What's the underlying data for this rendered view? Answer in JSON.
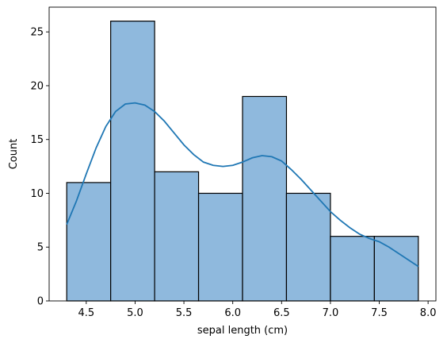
{
  "chart_data": {
    "type": "bar",
    "subtype": "histogram-with-kde",
    "xlabel": "sepal length (cm)",
    "ylabel": "Count",
    "xlim": [
      4.12,
      8.08
    ],
    "ylim": [
      0,
      27.3
    ],
    "xticks": [
      4.5,
      5.0,
      5.5,
      6.0,
      6.5,
      7.0,
      7.5,
      8.0
    ],
    "xtick_labels": [
      "4.5",
      "5.0",
      "5.5",
      "6.0",
      "6.5",
      "7.0",
      "7.5",
      "8.0"
    ],
    "yticks": [
      0,
      5,
      10,
      15,
      20,
      25
    ],
    "ytick_labels": [
      "0",
      "5",
      "10",
      "15",
      "20",
      "25"
    ],
    "bins": [
      {
        "x0": 4.3,
        "x1": 4.75,
        "count": 11
      },
      {
        "x0": 4.75,
        "x1": 5.2,
        "count": 26
      },
      {
        "x0": 5.2,
        "x1": 5.65,
        "count": 12
      },
      {
        "x0": 5.65,
        "x1": 6.1,
        "count": 10
      },
      {
        "x0": 6.1,
        "x1": 6.55,
        "count": 19
      },
      {
        "x0": 6.55,
        "x1": 7.0,
        "count": 10
      },
      {
        "x0": 7.0,
        "x1": 7.45,
        "count": 6
      },
      {
        "x0": 7.45,
        "x1": 7.9,
        "count": 6
      }
    ],
    "kde": {
      "x": [
        4.3,
        4.4,
        4.5,
        4.6,
        4.7,
        4.8,
        4.9,
        5.0,
        5.1,
        5.2,
        5.3,
        5.4,
        5.5,
        5.6,
        5.7,
        5.8,
        5.9,
        6.0,
        6.1,
        6.2,
        6.3,
        6.4,
        6.5,
        6.6,
        6.7,
        6.8,
        6.9,
        7.0,
        7.1,
        7.2,
        7.3,
        7.4,
        7.5,
        7.6,
        7.7,
        7.8,
        7.9
      ],
      "y": [
        7.1,
        9.3,
        11.8,
        14.2,
        16.2,
        17.6,
        18.3,
        18.4,
        18.2,
        17.6,
        16.7,
        15.6,
        14.5,
        13.6,
        12.9,
        12.6,
        12.5,
        12.6,
        12.9,
        13.3,
        13.5,
        13.4,
        13.0,
        12.2,
        11.3,
        10.3,
        9.3,
        8.3,
        7.5,
        6.8,
        6.2,
        5.8,
        5.5,
        5.0,
        4.4,
        3.8,
        3.2
      ]
    },
    "grid": false,
    "colors": {
      "bar_fill": "#8fb9dd",
      "bar_edge": "#000000",
      "kde_line": "#1f77b4"
    }
  }
}
